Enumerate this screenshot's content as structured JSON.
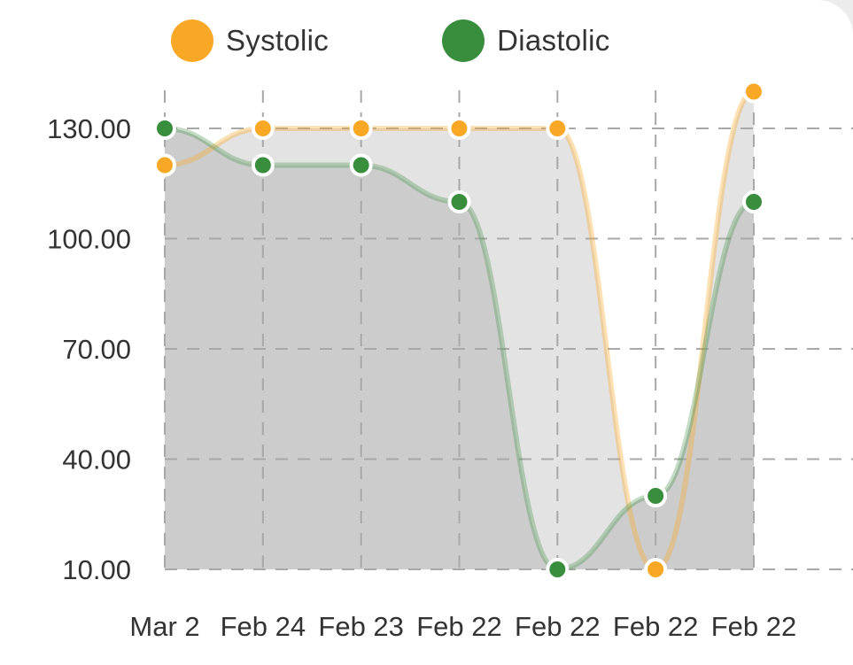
{
  "chart_data": {
    "type": "area",
    "categories": [
      "Mar 2",
      "Feb 24",
      "Feb 23",
      "Feb 22",
      "Feb 22",
      "Feb 22",
      "Feb 22"
    ],
    "series": [
      {
        "name": "Systolic",
        "color": "#F9A825",
        "values": [
          120,
          130,
          130,
          130,
          130,
          10,
          140
        ]
      },
      {
        "name": "Diastolic",
        "color": "#388E3C",
        "values": [
          130,
          120,
          120,
          110,
          10,
          30,
          110
        ]
      }
    ],
    "yticks": [
      "130.00",
      "100.00",
      "70.00",
      "40.00",
      "10.00"
    ],
    "ylim": [
      10,
      140
    ],
    "grid": "dashed",
    "legend_position": "top",
    "title": "",
    "xlabel": "",
    "ylabel": ""
  }
}
